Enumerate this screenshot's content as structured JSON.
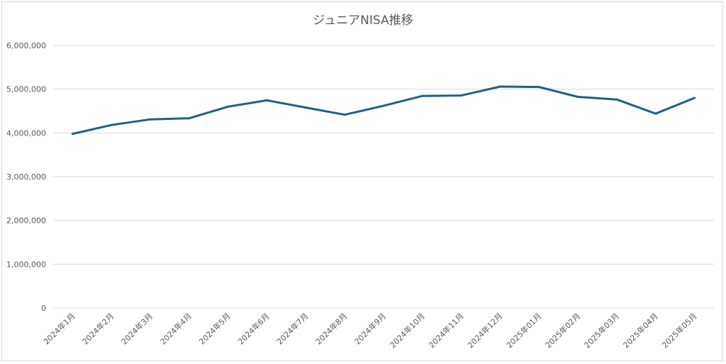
{
  "chart_data": {
    "type": "line",
    "title": "ジュニアNISA推移",
    "xlabel": "",
    "ylabel": "",
    "categories": [
      "2024年1月",
      "2024年2月",
      "2024年3月",
      "2024年4月",
      "2024年5月",
      "2024年6月",
      "2024年7月",
      "2024年8月",
      "2024年9月",
      "2024年10月",
      "2024年11月",
      "2024年12月",
      "2025年01月",
      "2025年02月",
      "2025年03月",
      "2025年04月",
      "2025年05月"
    ],
    "series": [
      {
        "values": [
          3980000,
          4180000,
          4310000,
          4335000,
          4600000,
          4745000,
          4580000,
          4415000,
          4620000,
          4845000,
          4855000,
          5060000,
          5050000,
          4825000,
          4765000,
          4440000,
          4800000
        ],
        "color": "#1f6182"
      }
    ],
    "ylim": [
      0,
      6000000
    ],
    "yticks": [
      0,
      1000000,
      2000000,
      3000000,
      4000000,
      5000000,
      6000000
    ],
    "ytick_labels": [
      "0",
      "1,000,000",
      "2,000,000",
      "3,000,000",
      "4,000,000",
      "5,000,000",
      "6,000,000"
    ],
    "grid": true,
    "legend": "none"
  }
}
